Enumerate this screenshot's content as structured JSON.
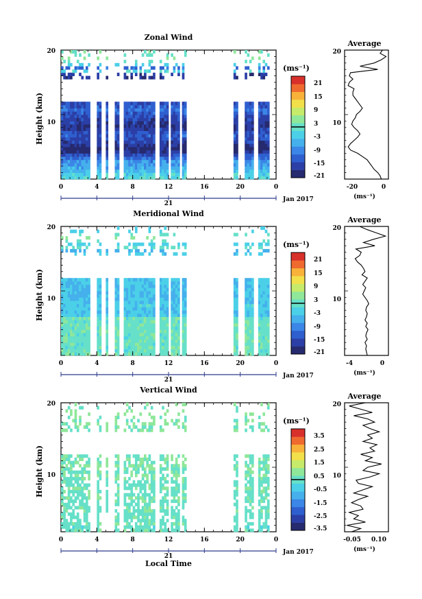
{
  "colors": {
    "ramp": [
      "#262a6e",
      "#2b3fa6",
      "#2f5fcf",
      "#3b86e6",
      "#45b0ec",
      "#4bd0e8",
      "#66e0c8",
      "#8fe79a",
      "#c6ea6a",
      "#f2e04a",
      "#f8b23a",
      "#ef6a2f",
      "#d8302a"
    ]
  },
  "chart_data": [
    {
      "type": "heatmap",
      "panel": "zonal",
      "title": "Zonal Wind",
      "ylabel": "Height (km)",
      "yticks": [
        "20",
        "10"
      ],
      "ylim": [
        0,
        20
      ],
      "xticks": [
        "0",
        "4",
        "8",
        "12",
        "16",
        "20",
        "0"
      ],
      "xlim": [
        0,
        24
      ],
      "day_label": "21",
      "date_label": "Jan 2017",
      "unit": "(ms⁻¹)",
      "colorbar_ticks": [
        "21",
        "15",
        "9",
        "3",
        "-3",
        "-9",
        "-15",
        "-21"
      ],
      "colorbar_range": [
        -24,
        24
      ],
      "profile_values": [
        -2,
        -3,
        -5,
        -8,
        -10,
        -12,
        -14,
        -18,
        -22,
        -28,
        -30,
        -28,
        -25,
        -22,
        -20,
        -22,
        -25,
        -27,
        -26,
        -24,
        -23,
        -20,
        -18,
        -20,
        -22,
        -24,
        -26,
        -26,
        -25,
        -30,
        -29,
        -26,
        -29,
        -28,
        -5,
        -20,
        -8,
        -2,
        2,
        -3,
        -1
      ],
      "coverage": [
        [
          0,
          3.2
        ],
        [
          4.0,
          4.4
        ],
        [
          4.9,
          5.3
        ],
        [
          6.0,
          6.5
        ],
        [
          7.1,
          10.6
        ],
        [
          10.9,
          11.9
        ],
        [
          12.2,
          13.3
        ],
        [
          13.6,
          14.1
        ],
        [
          19.2,
          19.8
        ],
        [
          20.5,
          21.6
        ],
        [
          22.0,
          23.2
        ]
      ],
      "avg_title": "Average",
      "avg_yticks": [
        "20",
        "10"
      ],
      "avg_xticks": [
        "-20",
        "0"
      ],
      "avg_xlim": [
        -33,
        4
      ],
      "avg_xlabel": "(ms⁻¹)"
    },
    {
      "type": "heatmap",
      "panel": "meridional",
      "title": "Meridional Wind",
      "ylabel": "Height (km)",
      "yticks": [
        "20",
        "10"
      ],
      "ylim": [
        0,
        20
      ],
      "xticks": [
        "0",
        "4",
        "8",
        "12",
        "16",
        "20",
        "0"
      ],
      "xlim": [
        0,
        24
      ],
      "day_label": "21",
      "date_label": "Jan 2017",
      "unit": "(ms⁻¹)",
      "colorbar_ticks": [
        "21",
        "15",
        "9",
        "3",
        "-3",
        "-9",
        "-15",
        "-21"
      ],
      "colorbar_range": [
        -24,
        24
      ],
      "profile_values": [
        -2.0,
        -2.1,
        -2.2,
        -2.1,
        -2.3,
        -2.0,
        -2.2,
        -2.1,
        -1.9,
        -2.2,
        -2.0,
        -2.3,
        -2.1,
        -2.0,
        -2.2,
        -2.1,
        -1.8,
        -2.0,
        -2.3,
        -2.6,
        -2.4,
        -2.2,
        -2.6,
        -2.3,
        -2.0,
        -2.7,
        -2.3,
        -2.5,
        -2.8,
        -3.3,
        -3.6,
        -3.0,
        -2.8,
        -3.5,
        -1.0,
        -2.5,
        -1.2,
        0.4,
        -0.8,
        -2.0,
        -3.0
      ],
      "coverage": [
        [
          0,
          3.2
        ],
        [
          4.0,
          4.4
        ],
        [
          4.9,
          5.3
        ],
        [
          6.0,
          6.5
        ],
        [
          7.1,
          10.6
        ],
        [
          10.9,
          11.9
        ],
        [
          12.2,
          13.3
        ],
        [
          13.6,
          14.1
        ],
        [
          19.2,
          19.8
        ],
        [
          20.5,
          21.6
        ],
        [
          22.0,
          23.2
        ]
      ],
      "avg_title": "Average",
      "avg_yticks": [
        "20",
        "10"
      ],
      "avg_xticks": [
        "-4",
        "0"
      ],
      "avg_xlim": [
        -5,
        0.8
      ],
      "avg_xlabel": "(ms⁻¹)"
    },
    {
      "type": "heatmap",
      "panel": "vertical",
      "title": "Vertical Wind",
      "ylabel": "Height (km)",
      "yticks": [
        "20",
        "10"
      ],
      "ylim": [
        0,
        20
      ],
      "xticks": [
        "0",
        "4",
        "8",
        "12",
        "16",
        "20",
        "0"
      ],
      "xlim": [
        0,
        24
      ],
      "day_label": "21",
      "date_label": "Jan 2017",
      "unit": "(ms⁻¹)",
      "colorbar_ticks": [
        "3.5",
        "2.5",
        "1.5",
        "0.5",
        "-0.5",
        "-1.5",
        "-2.5",
        "-3.5"
      ],
      "colorbar_range": [
        -4,
        4
      ],
      "profile_values": [
        -0.03,
        0.01,
        -0.05,
        0.03,
        -0.02,
        0.0,
        -0.04,
        0.02,
        0.01,
        -0.03,
        0.0,
        0.04,
        -0.02,
        0.02,
        0.06,
        0.0,
        -0.01,
        0.05,
        0.09,
        0.02,
        0.04,
        0.1,
        0.03,
        0.06,
        0.01,
        0.07,
        0.05,
        0.08,
        0.02,
        0.06,
        0.04,
        0.09,
        0.05,
        0.02,
        0.07,
        0.04,
        -0.02,
        0.06,
        0.01,
        -0.04,
        0.03
      ],
      "coverage": [
        [
          0,
          3.2
        ],
        [
          4.0,
          4.4
        ],
        [
          4.9,
          5.3
        ],
        [
          6.0,
          6.5
        ],
        [
          7.1,
          10.6
        ],
        [
          10.9,
          11.9
        ],
        [
          12.2,
          13.3
        ],
        [
          13.6,
          14.1
        ],
        [
          19.2,
          19.8
        ],
        [
          20.5,
          21.6
        ],
        [
          22.0,
          23.2
        ]
      ],
      "avg_title": "Average",
      "avg_yticks": [
        "20",
        "10"
      ],
      "avg_xticks": [
        "-0.05",
        "0.10"
      ],
      "avg_xlim": [
        -0.06,
        0.13
      ],
      "avg_xlabel": "(ms⁻¹)",
      "xlabel": "Local Time"
    }
  ]
}
